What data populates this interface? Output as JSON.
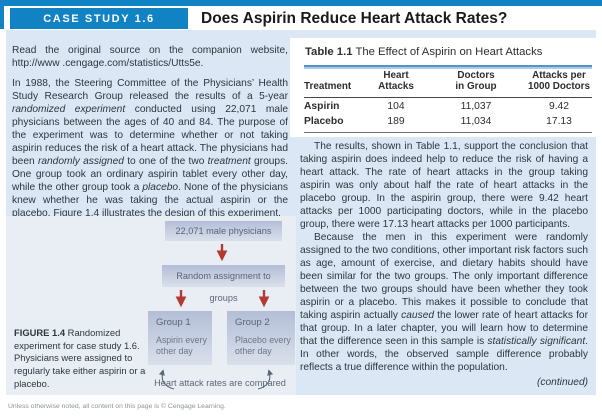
{
  "header": {
    "kicker": "CASE STUDY 1.6",
    "title": "Does Aspirin Reduce Heart Attack Rates?"
  },
  "colors": {
    "brand_blue": "#1182c4",
    "panel_blue": "#dbe7f4",
    "figure_bg": "#e9eef5",
    "arrow_red": "#b23a31",
    "table_rule_blue": "#5694c7"
  },
  "left_column": {
    "p1_segments": [
      {
        "t": "Read the original source on the companion website, http://www .cengage.com/statistics/Utts5e."
      }
    ],
    "p2_segments": [
      {
        "t": "In 1988, the Steering Committee of the Physicians’ Health Study Research Group released the results of a 5-year "
      },
      {
        "t": "randomized experiment",
        "i": true
      },
      {
        "t": " conducted using 22,071 male physicians between the ages of 40 and 84. The purpose of the experiment was to determine whether or not taking aspirin reduces the risk of a heart attack. The physicians had been "
      },
      {
        "t": "randomly assigned",
        "i": true
      },
      {
        "t": " to one of the two "
      },
      {
        "t": "treatment",
        "i": true
      },
      {
        "t": " groups. One group took an ordinary aspirin tablet every other day, while the other group took a "
      },
      {
        "t": "placebo",
        "i": true
      },
      {
        "t": ". None of the physicians knew whether he was taking the actual aspirin or the placebo. Figure 1.4 illustrates the design of this experiment."
      }
    ]
  },
  "figure": {
    "box_top": "22,071 male physicians",
    "box_mid": "Random assignment to groups",
    "group1_title": "Group 1",
    "group1_text": "Aspirin every other day",
    "group2_title": "Group 2",
    "group2_text": "Placebo every other day",
    "compare_text": "Heart attack rates are compared",
    "caption_segments": [
      {
        "t": "FIGURE 1.4 ",
        "b": true
      },
      {
        "t": "Randomized experiment for case study 1.6. Physicians were assigned to regularly take either aspirin or a placebo."
      }
    ]
  },
  "table": {
    "title_label": "Table 1.1",
    "title_text": " The Effect of Aspirin on Heart Attacks",
    "columns": [
      "Treatment",
      "Heart\nAttacks",
      "Doctors\nin Group",
      "Attacks per\n1000 Doctors"
    ],
    "rows": [
      [
        "Aspirin",
        "104",
        "11,037",
        "9.42"
      ],
      [
        "Placebo",
        "189",
        "11,034",
        "17.13"
      ]
    ]
  },
  "right_column": {
    "p1_segments": [
      {
        "t": "The results, shown in Table 1.1, support the conclusion that taking aspirin does indeed help to reduce the risk of having a heart attack. The rate of heart attacks in the group taking aspirin was only about half the rate of heart attacks in the placebo group. In the aspirin group, there were 9.42 heart attacks per 1000 participating doctors, while in the placebo group, there were 17.13 heart attacks per 1000 participants."
      }
    ],
    "p2_segments": [
      {
        "t": "Because the men in this experiment were randomly assigned to the two conditions, other important risk factors such as age, amount of exercise, and dietary habits should have been similar for the two groups. The only important difference between the two groups should have been whether they took aspirin or a placebo. This makes it possible to conclude that taking aspirin actually "
      },
      {
        "t": "caused",
        "i": true
      },
      {
        "t": " the lower rate of heart attacks for that group. In a later chapter, you will learn how to determine that the difference seen in this sample is "
      },
      {
        "t": "statistically significant",
        "i": true
      },
      {
        "t": ". In other words, the observed sample difference probably reflects a true difference within the population."
      }
    ],
    "continued": "(continued)"
  },
  "footer": {
    "text": "Unless otherwise noted, all content on this page is © Cengage Learning."
  },
  "chart_data": {
    "type": "table",
    "title": "Table 1.1 The Effect of Aspirin on Heart Attacks",
    "columns": [
      "Treatment",
      "Heart Attacks",
      "Doctors in Group",
      "Attacks per 1000 Doctors"
    ],
    "rows": [
      [
        "Aspirin",
        104,
        11037,
        9.42
      ],
      [
        "Placebo",
        189,
        11034,
        17.13
      ]
    ]
  }
}
